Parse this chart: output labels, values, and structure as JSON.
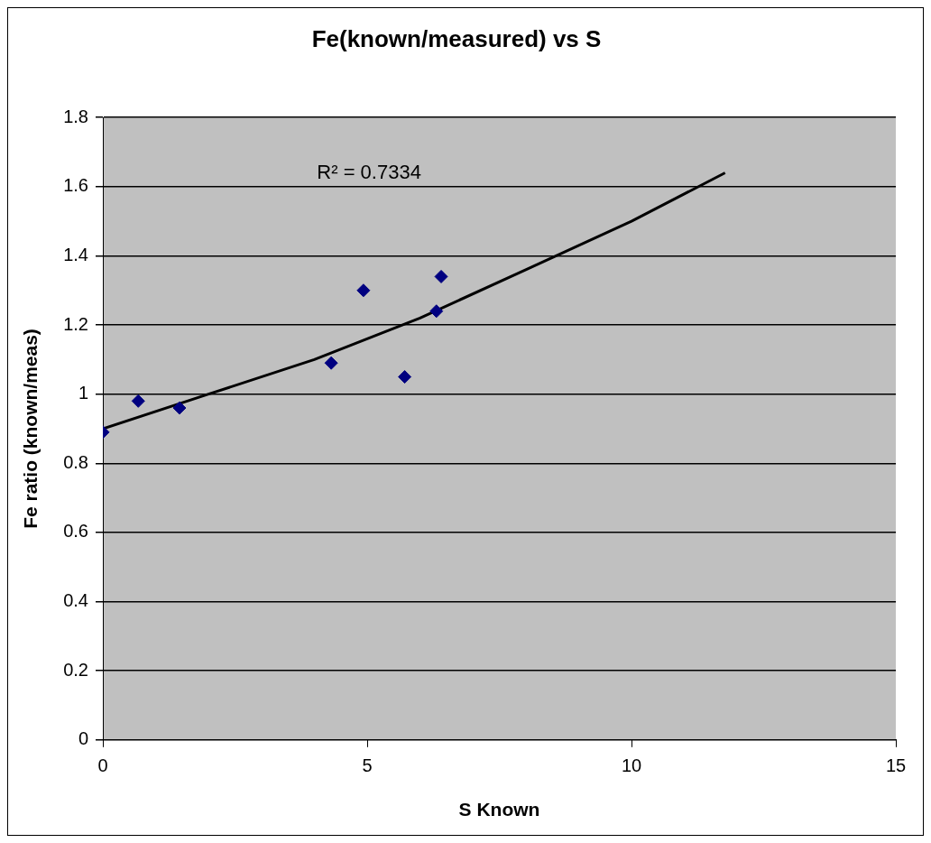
{
  "chart_data": {
    "type": "scatter",
    "title": "Fe(known/measured) vs S",
    "xlabel": "S Known",
    "ylabel": "Fe ratio (known/meas)",
    "series": [
      {
        "type": "scatter",
        "color": "#000080",
        "x": [
          0,
          0.67,
          1.45,
          4.32,
          4.93,
          5.71,
          6.31,
          6.4
        ],
        "values": [
          0.89,
          0.98,
          0.96,
          1.09,
          1.3,
          1.05,
          1.24,
          1.34
        ]
      },
      {
        "type": "line",
        "color": "#000000",
        "marker": "none",
        "x": [
          0,
          2,
          4,
          6,
          8,
          10,
          11.77
        ],
        "values": [
          0.9,
          1.0,
          1.1,
          1.22,
          1.36,
          1.5,
          1.64
        ]
      }
    ],
    "annotations": [
      "R² = 0.7334"
    ],
    "xlim": [
      0,
      15
    ],
    "xticks": [
      0,
      5,
      10,
      15
    ],
    "ylim": [
      0,
      1.8
    ],
    "yticks": [
      0,
      0.2,
      0.4,
      0.6,
      0.8,
      1,
      1.2,
      1.4,
      1.6,
      1.8
    ],
    "grid": "y",
    "legend": false,
    "marker": "diamond"
  }
}
